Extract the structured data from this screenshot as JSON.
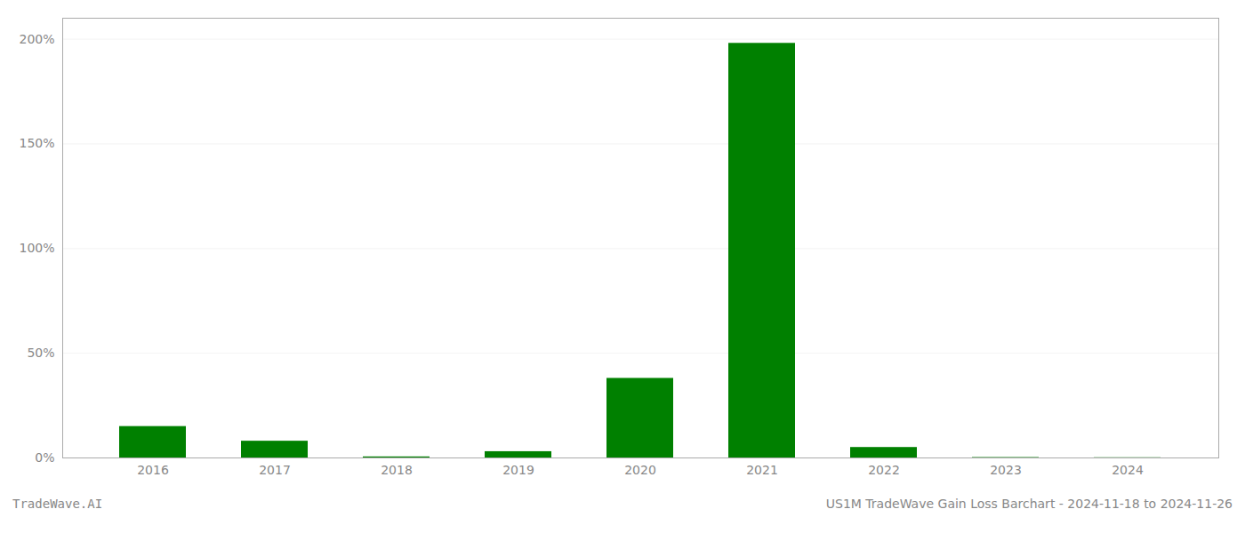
{
  "chart_data": {
    "type": "bar",
    "title": "US1M TradeWave Gain Loss Barchart - 2024-11-18 to 2024-11-26",
    "annotations": [
      "TradeWave.AI"
    ],
    "categories": [
      "2016",
      "2017",
      "2018",
      "2019",
      "2020",
      "2021",
      "2022",
      "2023",
      "2024"
    ],
    "values": [
      15.0,
      8.0,
      0.5,
      3.0,
      38.0,
      198.0,
      5.0,
      0.2,
      0.1
    ],
    "color": "#008000",
    "ylim": [
      0,
      210
    ],
    "yticks": [
      {
        "value": 0,
        "label": "0%"
      },
      {
        "value": 50,
        "label": "50%"
      },
      {
        "value": 100,
        "label": "100%"
      },
      {
        "value": 150,
        "label": "150%"
      },
      {
        "value": 200,
        "label": "200%"
      }
    ],
    "grid": true
  }
}
